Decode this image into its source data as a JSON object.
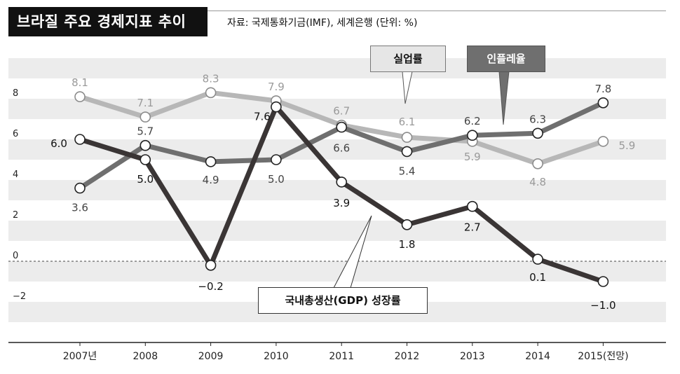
{
  "title": "브라질 주요 경제지표 추이",
  "source": "자료: 국제통화기금(IMF), 세계은행 (단위: %)",
  "chart_data": {
    "type": "line",
    "categories": [
      "2007년",
      "2008",
      "2009",
      "2010",
      "2011",
      "2012",
      "2013",
      "2014",
      "2015(전망)"
    ],
    "y_ticks": [
      "8",
      "6",
      "4",
      "2",
      "0",
      "−2"
    ],
    "ylim": [
      -4,
      10
    ],
    "grid": "alternating horizontal bands",
    "series": [
      {
        "name": "실업률",
        "color": "#b7b7b7",
        "values": [
          8.1,
          7.1,
          8.3,
          7.9,
          6.7,
          6.1,
          5.9,
          4.8,
          5.9
        ],
        "labels": [
          "8.1",
          "7.1",
          "8.3",
          "7.9",
          "6.7",
          "6.1",
          "5.9",
          "4.8",
          "5.9"
        ]
      },
      {
        "name": "인플레율",
        "color": "#6f6f6f",
        "values": [
          3.6,
          5.7,
          4.9,
          5.0,
          6.6,
          5.4,
          6.2,
          6.3,
          7.8
        ],
        "labels": [
          "3.6",
          "5.7",
          "4.9",
          "5.0",
          "6.6",
          "5.4",
          "6.2",
          "6.3",
          "7.8"
        ]
      },
      {
        "name": "국내총생산(GDP) 성장률",
        "color": "#3a3535",
        "values": [
          6.0,
          5.0,
          -0.2,
          7.6,
          3.9,
          1.8,
          2.7,
          0.1,
          -1.0
        ],
        "labels": [
          "6.0",
          "5.0",
          "−0.2",
          "7.6",
          "3.9",
          "1.8",
          "2.7",
          "0.1",
          "−1.0"
        ]
      }
    ]
  }
}
